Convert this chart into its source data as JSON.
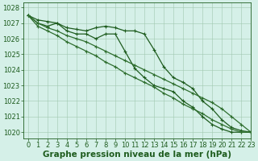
{
  "s1_y": [
    1027.5,
    1027.2,
    1027.1,
    1027.0,
    1026.7,
    1026.6,
    1026.5,
    1026.7,
    1026.8,
    1026.7,
    1026.5,
    1026.5,
    1026.3,
    1025.3,
    1024.2,
    1023.5,
    1023.2,
    1022.8,
    1022.0,
    1021.5,
    1020.8,
    1020.3,
    1020.1,
    1020.0
  ],
  "s2_y": [
    1027.5,
    1027.0,
    1026.8,
    1027.0,
    1026.5,
    1026.3,
    1026.3,
    1026.0,
    1026.3,
    1026.3,
    1025.2,
    1024.1,
    1023.5,
    1023.0,
    1022.8,
    1022.6,
    1022.0,
    1021.6,
    1021.0,
    1020.5,
    1020.2,
    1020.0,
    1020.0,
    1020.0
  ],
  "s3_y": [
    1027.5,
    1027.0,
    1026.7,
    1026.5,
    1026.2,
    1026.0,
    1025.8,
    1025.5,
    1025.2,
    1024.9,
    1024.6,
    1024.3,
    1024.0,
    1023.7,
    1023.4,
    1023.1,
    1022.8,
    1022.5,
    1022.2,
    1021.9,
    1021.5,
    1021.0,
    1020.5,
    1020.0
  ],
  "s4_y": [
    1027.5,
    1026.8,
    1026.5,
    1026.2,
    1025.8,
    1025.5,
    1025.2,
    1024.9,
    1024.5,
    1024.2,
    1023.8,
    1023.5,
    1023.2,
    1022.9,
    1022.5,
    1022.2,
    1021.8,
    1021.5,
    1021.2,
    1020.8,
    1020.5,
    1020.2,
    1020.0,
    1020.0
  ],
  "xlim": [
    -0.5,
    23
  ],
  "ylim": [
    1019.6,
    1028.3
  ],
  "xticks": [
    0,
    1,
    2,
    3,
    4,
    5,
    6,
    7,
    8,
    9,
    10,
    11,
    12,
    13,
    14,
    15,
    16,
    17,
    18,
    19,
    20,
    21,
    22,
    23
  ],
  "yticks": [
    1020,
    1021,
    1022,
    1023,
    1024,
    1025,
    1026,
    1027,
    1028
  ],
  "xlabel": "Graphe pression niveau de la mer (hPa)",
  "bg_color": "#d5f0e8",
  "grid_color": "#a0c8b0",
  "line_color1": "#1e5c1e",
  "line_color2": "#2e6e2e",
  "tick_fontsize": 6,
  "xlabel_fontsize": 7.5
}
